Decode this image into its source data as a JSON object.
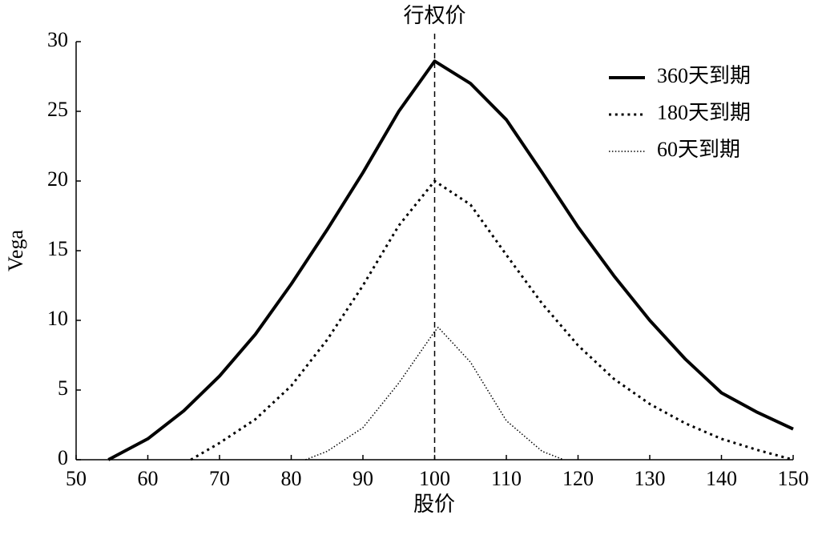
{
  "chart_data": {
    "type": "line",
    "x_label": "股价",
    "y_label": "Vega",
    "xlim": [
      50,
      150
    ],
    "xticks": [
      50,
      60,
      70,
      80,
      90,
      100,
      110,
      120,
      130,
      140,
      150
    ],
    "ylim": [
      0,
      30
    ],
    "yticks": [
      0,
      5,
      10,
      15,
      20,
      25,
      30
    ],
    "grid": false,
    "legend": "upper right",
    "reference_line": {
      "x": 100,
      "label": "行权价"
    },
    "series": [
      {
        "name": "360天到期",
        "color": "#000000",
        "width": 4,
        "dash": "solid",
        "x": [
          54.5,
          60,
          65,
          70,
          75,
          80,
          85,
          90,
          95,
          100,
          105,
          110,
          115,
          120,
          125,
          130,
          135,
          140,
          145,
          150
        ],
        "values": [
          0,
          1.5,
          3.5,
          6,
          9,
          12.6,
          16.5,
          20.6,
          25,
          28.6,
          27,
          24.4,
          20.6,
          16.7,
          13.2,
          10,
          7.2,
          4.8,
          3.4,
          2.2
        ]
      },
      {
        "name": "180天到期",
        "color": "#000000",
        "width": 3,
        "dash": "dotted",
        "x": [
          66,
          70,
          75,
          80,
          85,
          90,
          95,
          100,
          105,
          110,
          115,
          120,
          125,
          130,
          135,
          140,
          145,
          150
        ],
        "values": [
          0,
          1.2,
          2.9,
          5.3,
          8.6,
          12.5,
          16.8,
          20,
          18.3,
          14.7,
          11.2,
          8.2,
          5.8,
          4,
          2.6,
          1.5,
          0.7,
          0
        ]
      },
      {
        "name": "60天到期",
        "color": "#000000",
        "width": 1.5,
        "dash": "dotted",
        "x": [
          82,
          85,
          90,
          95,
          100,
          100.5,
          105,
          110,
          115,
          118
        ],
        "values": [
          0,
          0.6,
          2.3,
          5.5,
          9.2,
          9.5,
          7,
          2.8,
          0.6,
          0
        ]
      }
    ]
  }
}
